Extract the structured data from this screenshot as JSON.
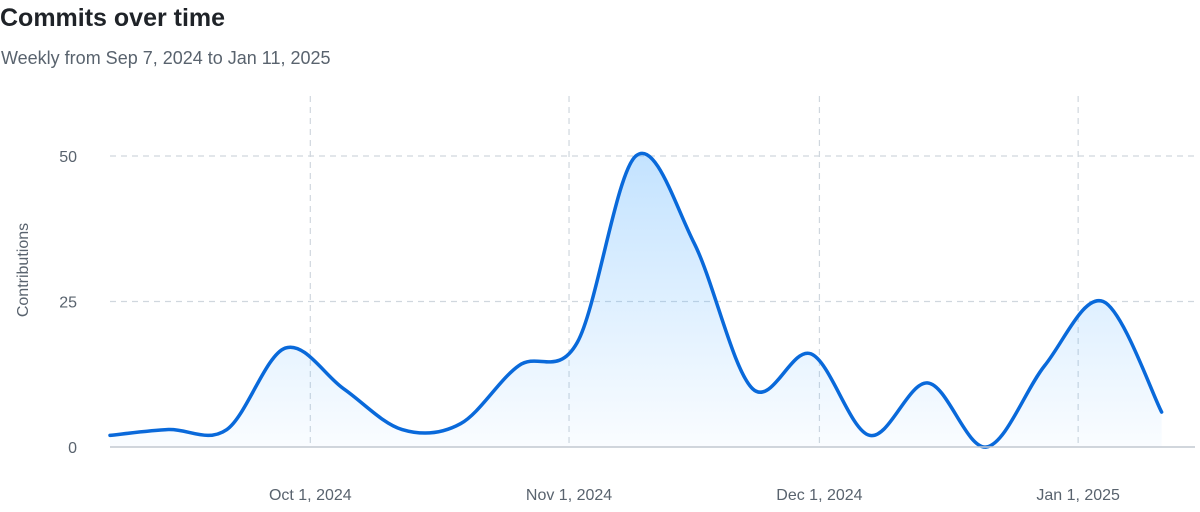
{
  "chart_data": {
    "type": "area",
    "title": "Commits over time",
    "subtitle": "Weekly from Sep 7, 2024 to Jan 11, 2025",
    "xlabel": "",
    "ylabel": "Contributions",
    "ylim": [
      0,
      50
    ],
    "yticks": [
      0,
      25,
      50
    ],
    "xticks": [
      {
        "date": "2024-10-01",
        "label": "Oct 1, 2024"
      },
      {
        "date": "2024-11-01",
        "label": "Nov 1, 2024"
      },
      {
        "date": "2024-12-01",
        "label": "Dec 1, 2024"
      },
      {
        "date": "2025-01-01",
        "label": "Jan 1, 2025"
      }
    ],
    "xrange": [
      "2024-09-07",
      "2025-01-15"
    ],
    "grid": true,
    "legend": "none",
    "line_color": "#0969da",
    "fill_color": "#54aeff",
    "series": [
      {
        "x": [
          "2024-09-07",
          "2024-09-14",
          "2024-09-21",
          "2024-09-28",
          "2024-10-05",
          "2024-10-12",
          "2024-10-19",
          "2024-10-26",
          "2024-11-02",
          "2024-11-09",
          "2024-11-16",
          "2024-11-23",
          "2024-11-30",
          "2024-12-07",
          "2024-12-14",
          "2024-12-21",
          "2024-12-28",
          "2025-01-04",
          "2025-01-11"
        ],
        "y": [
          2,
          3,
          3,
          17,
          10,
          3,
          4,
          14,
          18,
          50,
          35,
          10,
          16,
          2,
          11,
          0,
          14,
          25,
          6
        ]
      }
    ]
  }
}
